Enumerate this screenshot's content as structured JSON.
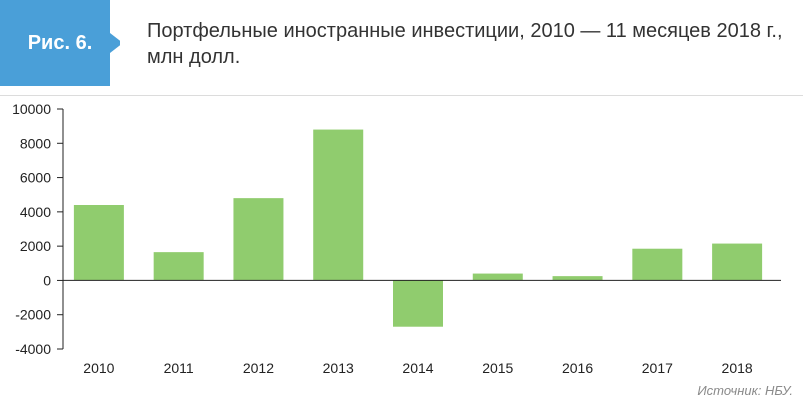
{
  "figure": {
    "badge_label": "Рис. 6.",
    "title": "Портфельные иностранные инвестиции, 2010 — 11 месяцев 2018 г., млн долл.",
    "source": "Источник: НБУ."
  },
  "colors": {
    "badge": "#4a9fd8",
    "bar": "#90cc6e",
    "axis": "#222222",
    "grid": "#e6e6e6"
  },
  "chart_data": {
    "type": "bar",
    "categories": [
      "2010",
      "2011",
      "2012",
      "2013",
      "2014",
      "2015",
      "2016",
      "2017",
      "2018"
    ],
    "values": [
      4400,
      1650,
      4800,
      8800,
      -2700,
      400,
      250,
      1850,
      2150
    ],
    "yticks": [
      10000,
      8000,
      6000,
      4000,
      2000,
      0,
      -2000,
      -4000
    ],
    "ylim": [
      -4000,
      10000
    ],
    "grid": false,
    "legend": "none"
  }
}
